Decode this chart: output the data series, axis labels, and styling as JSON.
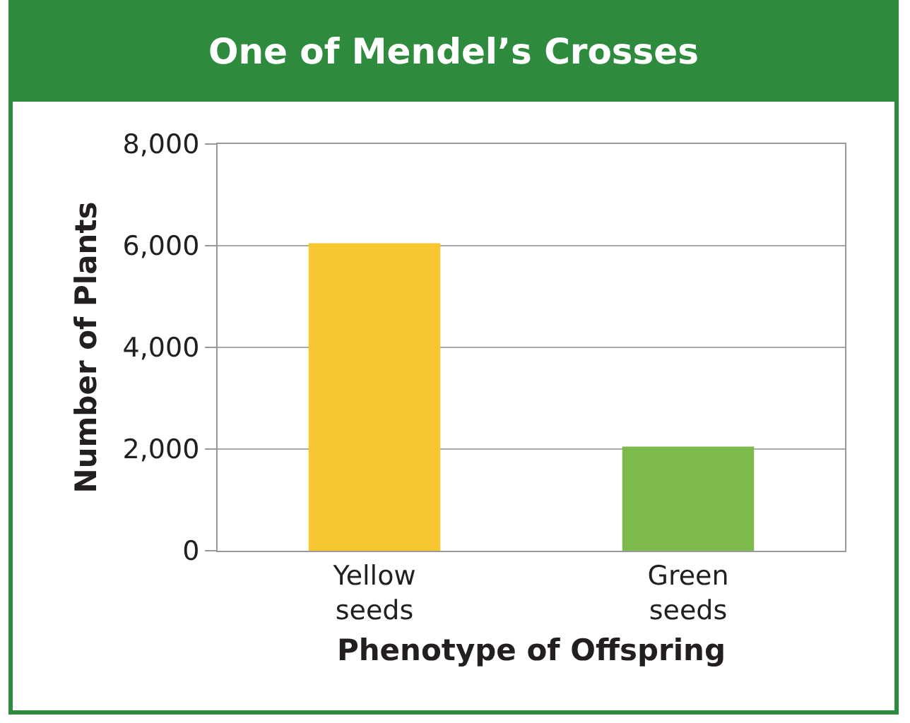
{
  "chart_data": {
    "type": "bar",
    "title": "One of Mendel’s Crosses",
    "xlabel": "Phenotype of Offspring",
    "ylabel": "Number of Plants",
    "categories": [
      "Yellow seeds",
      "Green seeds"
    ],
    "values": [
      6050,
      2050
    ],
    "colors": [
      "#f8c630",
      "#7dba4c"
    ],
    "ylim": [
      0,
      8000
    ],
    "yticks": [
      {
        "value": 0,
        "label": "0"
      },
      {
        "value": 2000,
        "label": "2,000"
      },
      {
        "value": 4000,
        "label": "4,000"
      },
      {
        "value": 6000,
        "label": "6,000"
      },
      {
        "value": 8000,
        "label": "8,000"
      }
    ],
    "grid": "y"
  }
}
